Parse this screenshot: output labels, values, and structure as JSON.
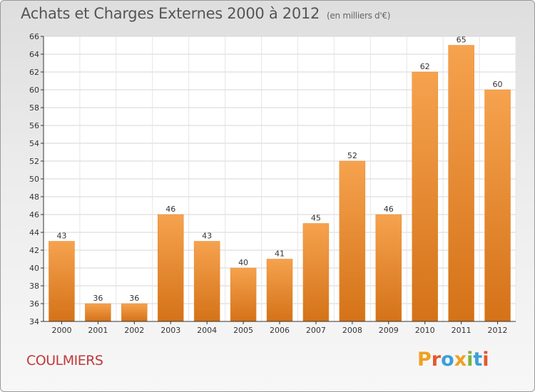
{
  "title": "Achats et Charges Externes 2000 à 2012",
  "subtitle": "(en milliers d'€)",
  "commune": "COULMIERS",
  "logo": {
    "text": "Proxiti",
    "colors": [
      "#f0a020",
      "#e4572e",
      "#3aa0d8",
      "#f0a020",
      "#7cb342",
      "#3aa0d8",
      "#e4572e"
    ]
  },
  "colors": {
    "bar_top": "#f6a24e",
    "bar_bottom": "#d47218",
    "bar_edge": "#e08a30",
    "commune": "#c0393b"
  },
  "chart_data": {
    "type": "bar",
    "title": "Achats et Charges Externes 2000 à 2012",
    "subtitle": "(en milliers d'€)",
    "categories": [
      "2000",
      "2001",
      "2002",
      "2003",
      "2004",
      "2005",
      "2006",
      "2007",
      "2008",
      "2009",
      "2010",
      "2011",
      "2012"
    ],
    "values": [
      43,
      36,
      36,
      46,
      43,
      40,
      41,
      45,
      52,
      46,
      62,
      65,
      60
    ],
    "ylim": [
      34,
      66
    ],
    "yticks": [
      34,
      36,
      38,
      40,
      42,
      44,
      46,
      48,
      50,
      52,
      54,
      56,
      58,
      60,
      62,
      64,
      66
    ],
    "grid": true,
    "data_labels": true
  }
}
